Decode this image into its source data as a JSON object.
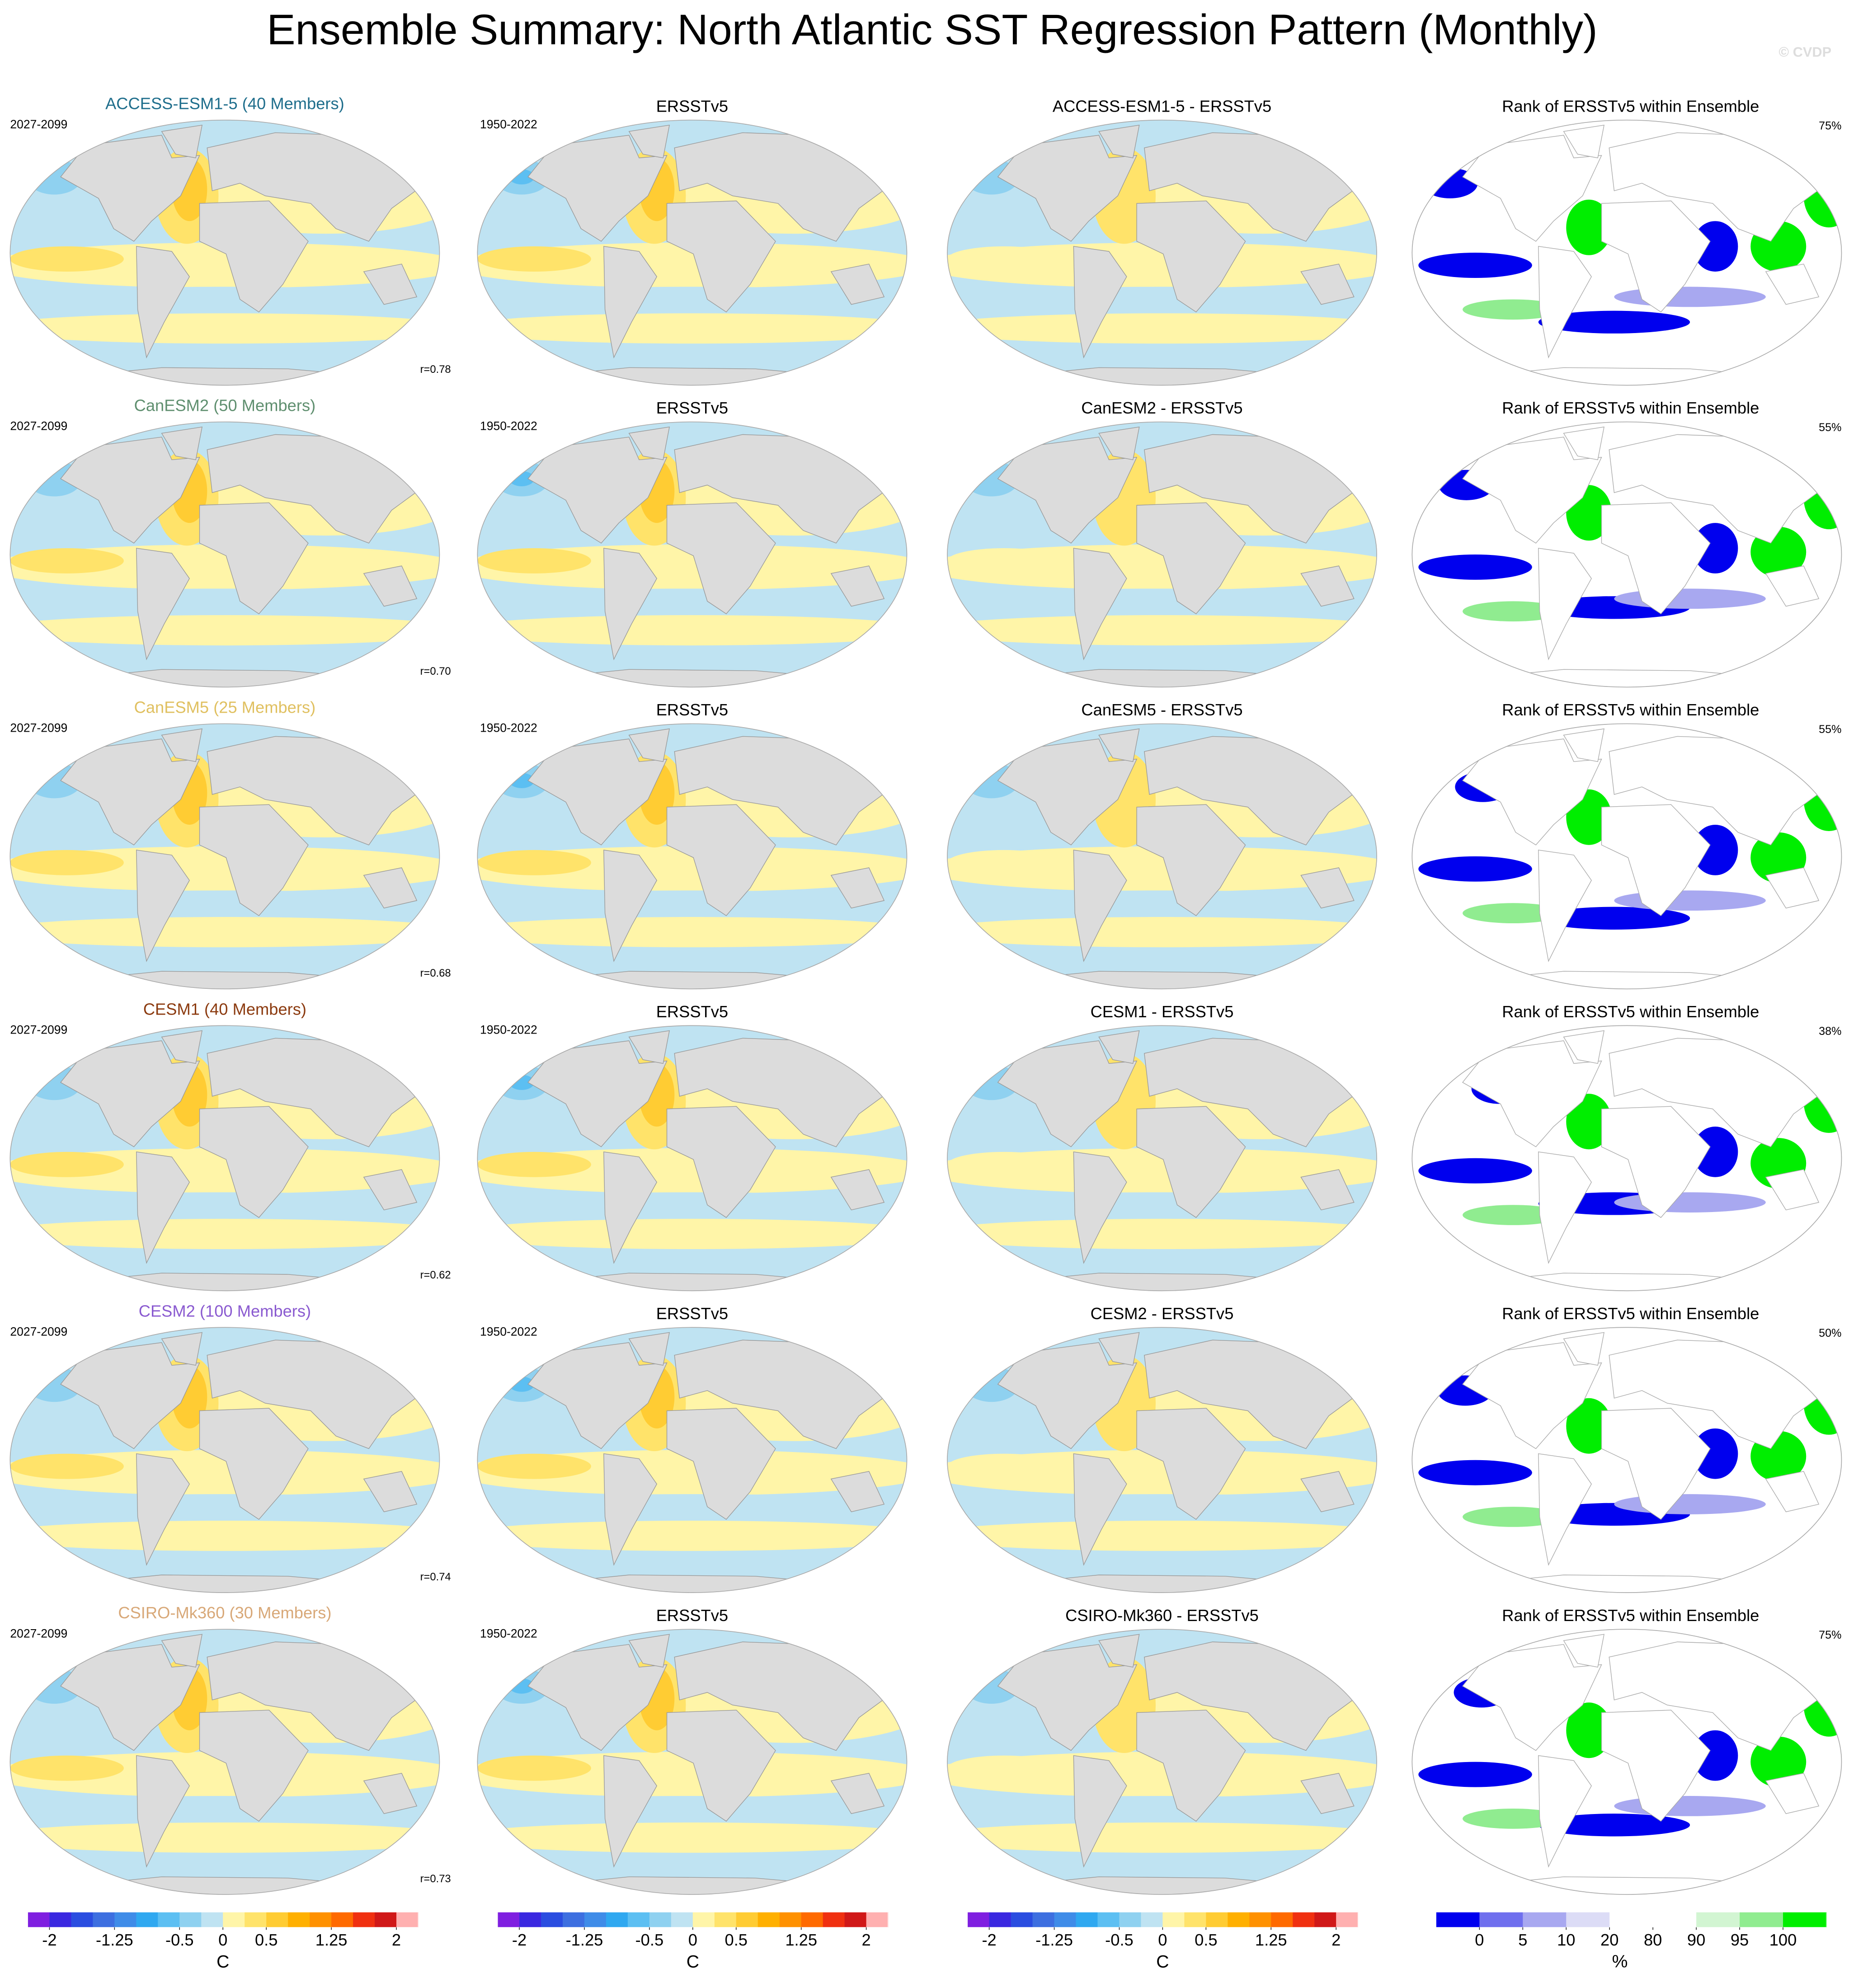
{
  "title": "Ensemble Summary: North Atlantic SST Regression Pattern (Monthly)",
  "watermark": "© CVDP",
  "rows": [
    {
      "model": "ACCESS-ESM1-5 (40 Members)",
      "model_color": "#1f6e8c",
      "period": "2027-2099",
      "obs_title": "ERSSTv5",
      "obs_period": "1950-2022",
      "diff_title": "ACCESS-ESM1-5 - ERSSTv5",
      "rank_title": "Rank of ERSSTv5 within Ensemble",
      "rank_pct": "75%",
      "r": "r=0.78"
    },
    {
      "model": "CanESM2 (50 Members)",
      "model_color": "#5f8f6f",
      "period": "2027-2099",
      "obs_title": "ERSSTv5",
      "obs_period": "1950-2022",
      "diff_title": "CanESM2 - ERSSTv5",
      "rank_title": "Rank of ERSSTv5 within Ensemble",
      "rank_pct": "55%",
      "r": "r=0.70"
    },
    {
      "model": "CanESM5 (25 Members)",
      "model_color": "#e0c060",
      "period": "2027-2099",
      "obs_title": "ERSSTv5",
      "obs_period": "1950-2022",
      "diff_title": "CanESM5 - ERSSTv5",
      "rank_title": "Rank of ERSSTv5 within Ensemble",
      "rank_pct": "55%",
      "r": "r=0.68"
    },
    {
      "model": "CESM1 (40 Members)",
      "model_color": "#8b3a0f",
      "period": "2027-2099",
      "obs_title": "ERSSTv5",
      "obs_period": "1950-2022",
      "diff_title": "CESM1 - ERSSTv5",
      "rank_title": "Rank of ERSSTv5 within Ensemble",
      "rank_pct": "38%",
      "r": "r=0.62"
    },
    {
      "model": "CESM2 (100 Members)",
      "model_color": "#8a5ad0",
      "period": "2027-2099",
      "obs_title": "ERSSTv5",
      "obs_period": "1950-2022",
      "diff_title": "CESM2 - ERSSTv5",
      "rank_title": "Rank of ERSSTv5 within Ensemble",
      "rank_pct": "50%",
      "r": "r=0.74"
    },
    {
      "model": "CSIRO-Mk360 (30 Members)",
      "model_color": "#d8a878",
      "period": "2027-2099",
      "obs_title": "ERSSTv5",
      "obs_period": "1950-2022",
      "diff_title": "CSIRO-Mk360 - ERSSTv5",
      "rank_title": "Rank of ERSSTv5 within Ensemble",
      "rank_pct": "75%",
      "r": "r=0.73"
    }
  ],
  "colorbars": [
    {
      "lim": [
        -2.25,
        2.25
      ],
      "ticks": [
        -2,
        -1.25,
        -0.5,
        0,
        0.5,
        1.25,
        2
      ],
      "unit": "C",
      "colors": [
        "#7f1fe0",
        "#3a28e0",
        "#2a4de0",
        "#3d6fe0",
        "#3f8ce8",
        "#2fa8f0",
        "#5cbff2",
        "#8fd1f0",
        "#bfe3f2",
        "#fff5a8",
        "#ffe36a",
        "#ffcc33",
        "#ffb000",
        "#ff9100",
        "#ff6a00",
        "#f03010",
        "#d01818",
        "#ffb0b0"
      ]
    },
    {
      "lim": [
        -2.25,
        2.25
      ],
      "ticks": [
        -2,
        -1.25,
        -0.5,
        0,
        0.5,
        1.25,
        2
      ],
      "unit": "C",
      "colors": [
        "#7f1fe0",
        "#3a28e0",
        "#2a4de0",
        "#3d6fe0",
        "#3f8ce8",
        "#2fa8f0",
        "#5cbff2",
        "#8fd1f0",
        "#bfe3f2",
        "#fff5a8",
        "#ffe36a",
        "#ffcc33",
        "#ffb000",
        "#ff9100",
        "#ff6a00",
        "#f03010",
        "#d01818",
        "#ffb0b0"
      ]
    },
    {
      "lim": [
        -2.25,
        2.25
      ],
      "ticks": [
        -2,
        -1.25,
        -0.5,
        0,
        0.5,
        1.25,
        2
      ],
      "unit": "C",
      "colors": [
        "#7f1fe0",
        "#3a28e0",
        "#2a4de0",
        "#3d6fe0",
        "#3f8ce8",
        "#2fa8f0",
        "#5cbff2",
        "#8fd1f0",
        "#bfe3f2",
        "#fff5a8",
        "#ffe36a",
        "#ffcc33",
        "#ffb000",
        "#ff9100",
        "#ff6a00",
        "#f03010",
        "#d01818",
        "#ffb0b0"
      ]
    },
    {
      "ticks": [
        0,
        5,
        10,
        20,
        80,
        90,
        95,
        100
      ],
      "unit": "%",
      "colors": [
        "#0000ee",
        "#6f6fee",
        "#a8a8f0",
        "#dcdcf6",
        "#ffffff",
        "#ffffff",
        "#d2f5d2",
        "#90ec90",
        "#00ee00"
      ]
    }
  ]
}
